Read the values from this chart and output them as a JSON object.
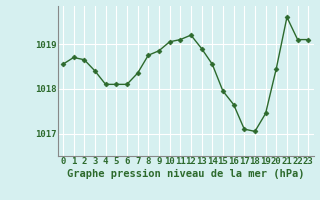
{
  "x": [
    0,
    1,
    2,
    3,
    4,
    5,
    6,
    7,
    8,
    9,
    10,
    11,
    12,
    13,
    14,
    15,
    16,
    17,
    18,
    19,
    20,
    21,
    22,
    23
  ],
  "y": [
    1018.55,
    1018.7,
    1018.65,
    1018.4,
    1018.1,
    1018.1,
    1018.1,
    1018.35,
    1018.75,
    1018.85,
    1019.05,
    1019.1,
    1019.2,
    1018.9,
    1018.55,
    1017.95,
    1017.65,
    1017.1,
    1017.05,
    1017.45,
    1018.45,
    1019.6,
    1019.1,
    1019.1
  ],
  "line_color": "#2d6a2d",
  "marker": "D",
  "marker_size": 2.5,
  "linewidth": 1.0,
  "bg_color": "#d6f0f0",
  "grid_color": "#ffffff",
  "ylabel_ticks": [
    1017,
    1018,
    1019
  ],
  "xlim": [
    -0.5,
    23.5
  ],
  "ylim": [
    1016.5,
    1019.85
  ],
  "xlabel": "Graphe pression niveau de la mer (hPa)",
  "xlabel_fontsize": 7.5,
  "tick_fontsize": 6.5,
  "label_color": "#2d6a2d",
  "spine_color": "#888888",
  "bottom_bg": "#3a7a3a"
}
